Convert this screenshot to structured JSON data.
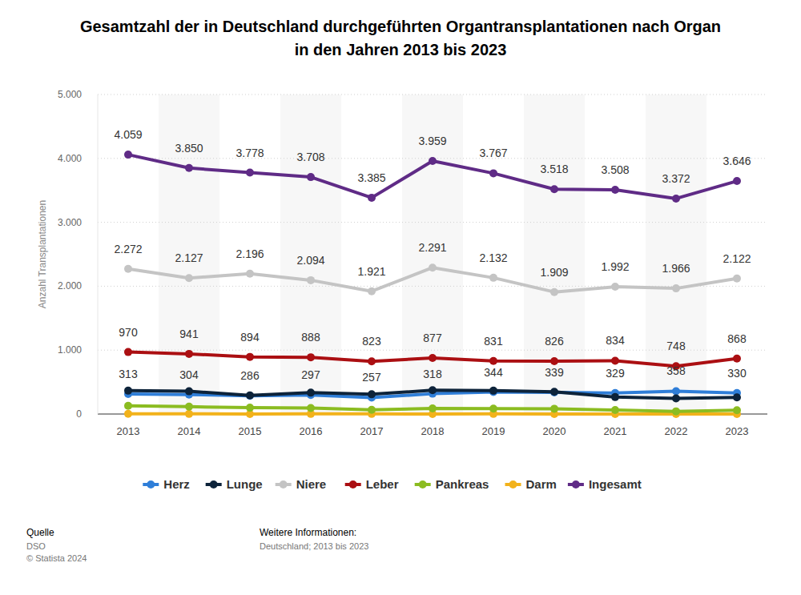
{
  "chart_data": {
    "type": "line",
    "title": "Gesamtzahl der in Deutschland durchgeführten Organtransplantationen nach Organ\nin den Jahren 2013 bis 2023",
    "y_label": "Anzahl Transplantationen",
    "categories": [
      "2013",
      "2014",
      "2015",
      "2016",
      "2017",
      "2018",
      "2019",
      "2020",
      "2021",
      "2022",
      "2023"
    ],
    "ylim": [
      0,
      5000
    ],
    "yticks": [
      0,
      {
        "value": 1000,
        "label": "1.000"
      },
      {
        "value": 2000,
        "label": "2.000"
      },
      {
        "value": 3000,
        "label": "3.000"
      },
      {
        "value": 4000,
        "label": "4.000"
      },
      {
        "value": 5000,
        "label": "5.000"
      }
    ],
    "grid": true,
    "legend": "bottom",
    "data_labels": true,
    "marker": "circle",
    "series": [
      {
        "name": "Herz",
        "color": "#2f7ed8",
        "values": [
          313,
          304,
          286,
          297,
          257,
          318,
          344,
          339,
          329,
          358,
          330
        ],
        "value_labels": [
          "313",
          "304",
          "286",
          "297",
          "257",
          "318",
          "344",
          "339",
          "329",
          "358",
          "330"
        ]
      },
      {
        "name": "Lunge",
        "color": "#0d233a",
        "values": [
          365,
          356,
          291,
          334,
          309,
          373,
          365,
          348,
          265,
          244,
          259
        ]
      },
      {
        "name": "Niere",
        "color": "#c4c4c4",
        "values": [
          2272,
          2127,
          2196,
          2094,
          1921,
          2291,
          2132,
          1909,
          1992,
          1966,
          2122
        ],
        "value_labels": [
          "2.272",
          "2.127",
          "2.196",
          "2.094",
          "1.921",
          "2.291",
          "2.132",
          "1.909",
          "1.992",
          "1.966",
          "2.122"
        ]
      },
      {
        "name": "Leber",
        "color": "#ab0f12",
        "values": [
          970,
          941,
          894,
          888,
          823,
          877,
          831,
          826,
          834,
          748,
          868
        ],
        "value_labels": [
          "970",
          "941",
          "894",
          "888",
          "823",
          "877",
          "831",
          "826",
          "834",
          "748",
          "868"
        ]
      },
      {
        "name": "Pankreas",
        "color": "#8bbc21",
        "values": [
          128,
          115,
          99,
          95,
          66,
          87,
          85,
          83,
          63,
          42,
          59
        ]
      },
      {
        "name": "Darm",
        "color": "#f2b21b",
        "values": [
          3,
          2,
          1,
          2,
          2,
          1,
          2,
          0,
          1,
          1,
          0
        ]
      },
      {
        "name": "Ingesamt",
        "color": "#5f2b86",
        "values": [
          4059,
          3850,
          3778,
          3708,
          3385,
          3959,
          3767,
          3518,
          3508,
          3372,
          3646
        ],
        "value_labels": [
          "4.059",
          "3.850",
          "3.778",
          "3.708",
          "3.385",
          "3.959",
          "3.767",
          "3.518",
          "3.508",
          "3.372",
          "3.646"
        ]
      }
    ],
    "annotations": [
      "Quelle",
      "DSO",
      "© Statista 2024",
      "Weitere Informationen:",
      "Deutschland; 2013 bis 2023"
    ]
  }
}
